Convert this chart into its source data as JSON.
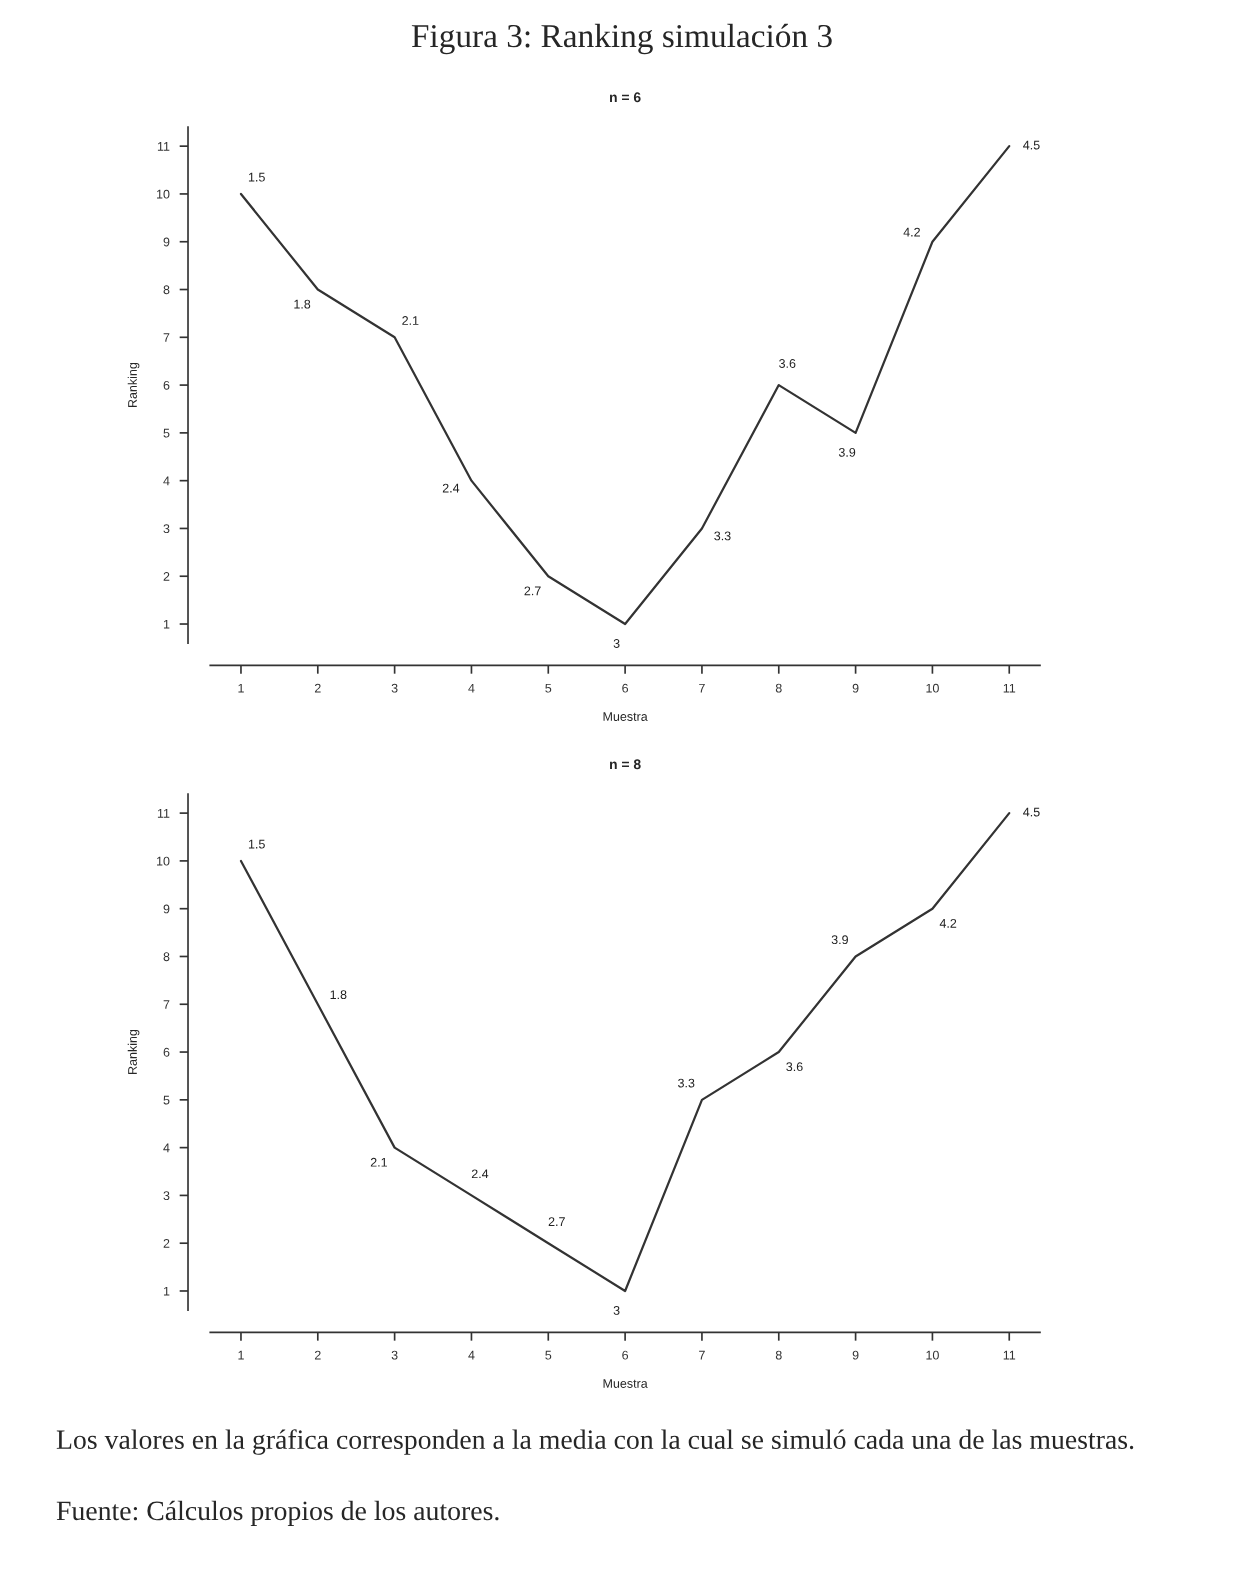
{
  "chart_data": [
    {
      "type": "line",
      "title": "Figura 3: Ranking simulación 3",
      "subtitle": "n = 6",
      "xlabel": "Muestra",
      "ylabel": "Ranking",
      "x": [
        1,
        2,
        3,
        4,
        5,
        6,
        7,
        8,
        9,
        10,
        11
      ],
      "series": [
        {
          "color": "#333333",
          "values": [
            10,
            8,
            7,
            4,
            2,
            1,
            3,
            6,
            5,
            9,
            11
          ]
        }
      ],
      "xlim": [
        0.6,
        11.4
      ],
      "ylim": [
        0.6,
        11.4
      ],
      "xticks": [
        1,
        2,
        3,
        4,
        5,
        6,
        7,
        8,
        9,
        10,
        11
      ],
      "yticks": [
        1,
        2,
        3,
        4,
        5,
        6,
        7,
        8,
        9,
        10,
        11
      ],
      "grid": false,
      "legend": false,
      "marker": "none",
      "line_style": "solid",
      "annotations": [
        {
          "text": "1.5",
          "x": 1,
          "y": 10
        },
        {
          "text": "1.8",
          "x": 2,
          "y": 8
        },
        {
          "text": "2.1",
          "x": 3,
          "y": 7
        },
        {
          "text": "2.4",
          "x": 4,
          "y": 4
        },
        {
          "text": "2.7",
          "x": 5,
          "y": 2
        },
        {
          "text": "3",
          "x": 6,
          "y": 1
        },
        {
          "text": "3.3",
          "x": 7,
          "y": 3
        },
        {
          "text": "3.6",
          "x": 8,
          "y": 6
        },
        {
          "text": "3.9",
          "x": 9,
          "y": 5
        },
        {
          "text": "4.2",
          "x": 10,
          "y": 9
        },
        {
          "text": "4.5",
          "x": 11,
          "y": 11
        }
      ]
    },
    {
      "type": "line",
      "subtitle": "n = 8",
      "xlabel": "Muestra",
      "ylabel": "Ranking",
      "x": [
        1,
        2,
        3,
        4,
        5,
        6,
        7,
        8,
        9,
        10,
        11
      ],
      "series": [
        {
          "color": "#333333",
          "values": [
            10,
            7,
            4,
            3,
            2,
            1,
            5,
            6,
            8,
            9,
            11
          ]
        }
      ],
      "xlim": [
        0.6,
        11.4
      ],
      "ylim": [
        0.6,
        11.4
      ],
      "xticks": [
        1,
        2,
        3,
        4,
        5,
        6,
        7,
        8,
        9,
        10,
        11
      ],
      "yticks": [
        1,
        2,
        3,
        4,
        5,
        6,
        7,
        8,
        9,
        10,
        11
      ],
      "grid": false,
      "legend": false,
      "marker": "none",
      "line_style": "solid",
      "annotations": [
        {
          "text": "1.5",
          "x": 1,
          "y": 10
        },
        {
          "text": "1.8",
          "x": 2,
          "y": 7
        },
        {
          "text": "2.1",
          "x": 3,
          "y": 4
        },
        {
          "text": "2.4",
          "x": 4,
          "y": 3
        },
        {
          "text": "2.7",
          "x": 5,
          "y": 2
        },
        {
          "text": "3",
          "x": 6,
          "y": 1
        },
        {
          "text": "3.3",
          "x": 7,
          "y": 5
        },
        {
          "text": "3.6",
          "x": 8,
          "y": 6
        },
        {
          "text": "3.9",
          "x": 9,
          "y": 8
        },
        {
          "text": "4.2",
          "x": 10,
          "y": 9
        },
        {
          "text": "4.5",
          "x": 11,
          "y": 11
        },
        "Los valores en la gráfica corresponden a la media con la cual se simuló cada una de las muestras.",
        "Fuente: Cálculos propios de los autores."
      ]
    }
  ]
}
